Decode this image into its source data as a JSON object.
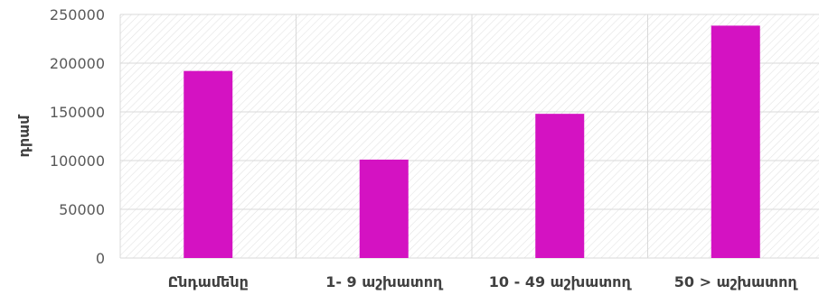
{
  "chart_data": {
    "type": "bar",
    "title": "",
    "xlabel": "",
    "ylabel": "դրամ",
    "categories": [
      "Ընդամենը",
      "1- 9 աշխատող",
      "10 - 49 աշխատող",
      "50 >  աշխատող"
    ],
    "values": [
      192000,
      101000,
      148000,
      238500
    ],
    "ylim": [
      0,
      250000
    ],
    "yticks": [
      0,
      50000,
      100000,
      150000,
      200000,
      250000
    ],
    "ytick_labels": [
      "0",
      "50000",
      "100000",
      "150000",
      "200000",
      "250000"
    ],
    "grid": true,
    "legend": "none",
    "colors": {
      "bar": "#d412c2",
      "grid": "#d9d9d9",
      "hatch": "#e3e3e3"
    }
  }
}
